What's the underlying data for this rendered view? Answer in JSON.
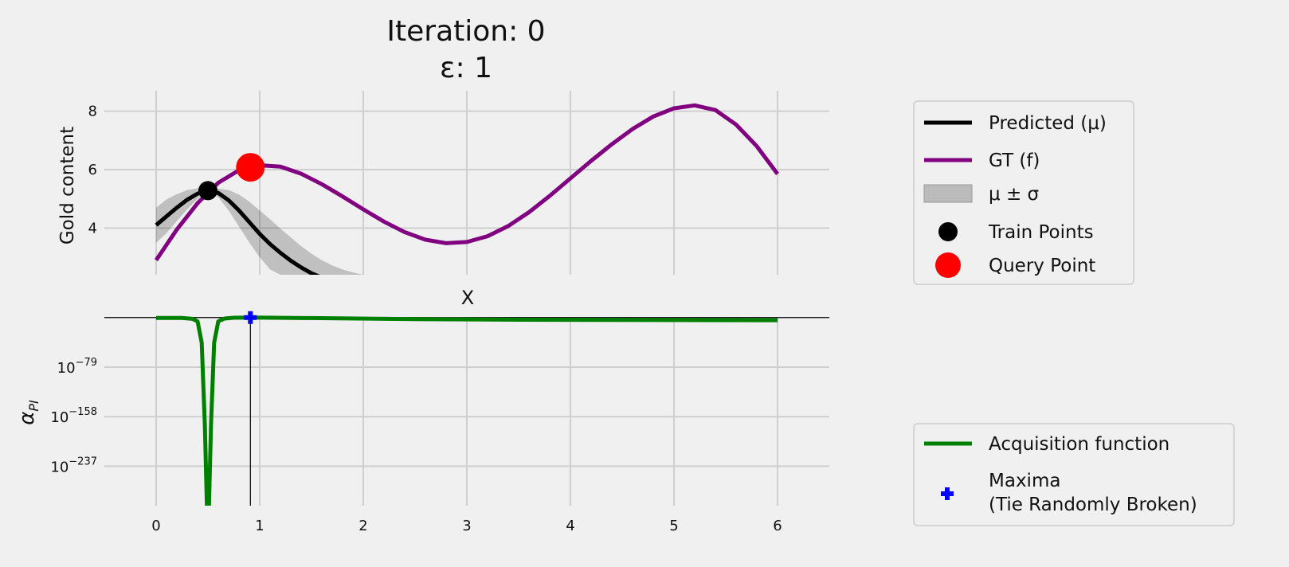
{
  "chart_data": [
    {
      "type": "line",
      "panel": "top",
      "title_line1": "Iteration: 0",
      "title_line2": "ε: 1",
      "xlabel": "X",
      "ylabel": "Gold content",
      "xlim": [
        -0.5,
        6.5
      ],
      "ylim": [
        2.4,
        8.7
      ],
      "xticks": [
        0,
        1,
        2,
        3,
        4,
        5,
        6
      ],
      "xtick_labels": [
        "0",
        "1",
        "2",
        "3",
        "4",
        "5",
        "6"
      ],
      "yticks": [
        4,
        6,
        8
      ],
      "ytick_labels": [
        "4",
        "6",
        "8"
      ],
      "grid": true,
      "legend_position": "right, outside",
      "series": [
        {
          "name": "GT (f)",
          "color": "#800080",
          "x": [
            0,
            0.2,
            0.4,
            0.6,
            0.8,
            1.0,
            1.2,
            1.4,
            1.6,
            1.8,
            2.0,
            2.2,
            2.4,
            2.6,
            2.8,
            3.0,
            3.2,
            3.4,
            3.6,
            3.8,
            4.0,
            4.2,
            4.4,
            4.6,
            4.8,
            5.0,
            5.2,
            5.4,
            5.6,
            5.8,
            6.0
          ],
          "y": [
            2.9,
            3.95,
            4.85,
            5.55,
            5.98,
            6.15,
            6.1,
            5.86,
            5.5,
            5.08,
            4.64,
            4.22,
            3.86,
            3.6,
            3.48,
            3.52,
            3.72,
            4.07,
            4.54,
            5.1,
            5.7,
            6.3,
            6.87,
            7.39,
            7.82,
            8.1,
            8.2,
            8.04,
            7.54,
            6.8,
            5.85
          ]
        },
        {
          "name": "Predicted (μ)",
          "color": "#000000",
          "x": [
            0,
            0.1,
            0.2,
            0.3,
            0.4,
            0.5,
            0.6,
            0.7,
            0.8,
            0.9,
            1.0,
            1.1,
            1.2,
            1.3,
            1.4,
            1.5,
            1.6
          ],
          "y": [
            4.1,
            4.4,
            4.7,
            4.97,
            5.18,
            5.28,
            5.2,
            4.95,
            4.6,
            4.2,
            3.8,
            3.45,
            3.15,
            2.88,
            2.65,
            2.45,
            2.3
          ]
        }
      ],
      "band": {
        "name": "μ ± σ",
        "color": "#000000",
        "x": [
          0,
          0.1,
          0.2,
          0.3,
          0.4,
          0.5,
          0.6,
          0.7,
          0.8,
          0.9,
          1.0,
          1.1,
          1.2,
          1.3,
          1.4,
          1.5,
          1.6,
          1.7,
          1.8,
          1.9,
          2.0
        ],
        "upper": [
          4.7,
          4.98,
          5.16,
          5.3,
          5.36,
          5.3,
          5.35,
          5.3,
          5.15,
          4.9,
          4.6,
          4.3,
          3.98,
          3.68,
          3.38,
          3.12,
          2.9,
          2.72,
          2.58,
          2.48,
          2.4
        ],
        "lower": [
          3.5,
          3.82,
          4.24,
          4.64,
          5.0,
          5.26,
          5.05,
          4.6,
          4.05,
          3.5,
          3.0,
          2.58,
          2.4,
          2.4,
          2.4,
          2.4,
          2.4,
          2.4,
          2.4,
          2.4,
          2.4
        ]
      },
      "train_points": {
        "name": "Train Points",
        "color": "#000000",
        "x": [
          0.5
        ],
        "y": [
          5.28
        ]
      },
      "query_point": {
        "name": "Query Point",
        "color": "#ff0000",
        "x": [
          0.91
        ],
        "y": [
          6.08
        ]
      }
    },
    {
      "type": "line",
      "panel": "bottom",
      "ylabel": "α_PI",
      "ylabel_main": "α",
      "ylabel_sub": "PI",
      "yscale": "log",
      "ylim_exp": [
        -300,
        1
      ],
      "yticks_exp": [
        -79,
        -158,
        -237
      ],
      "ytick_base": "10",
      "ytick_exponents": [
        "−79",
        "−158",
        "−237"
      ],
      "xlim": [
        -0.5,
        6.5
      ],
      "xticks": [
        0,
        1,
        2,
        3,
        4,
        5,
        6
      ],
      "xtick_labels": [
        "0",
        "1",
        "2",
        "3",
        "4",
        "5",
        "6"
      ],
      "grid": true,
      "legend_position": "right, outside, bottom",
      "series": [
        {
          "name": "Acquisition function",
          "color": "#008000",
          "x_exp_pairs": [
            [
              0,
              -0.5
            ],
            [
              0.25,
              -0.7
            ],
            [
              0.35,
              -2
            ],
            [
              0.4,
              -6
            ],
            [
              0.44,
              -40
            ],
            [
              0.47,
              -170
            ],
            [
              0.49,
              -300
            ],
            [
              0.51,
              -300
            ],
            [
              0.53,
              -170
            ],
            [
              0.56,
              -40
            ],
            [
              0.6,
              -6
            ],
            [
              0.66,
              -1.5
            ],
            [
              0.75,
              -0.3
            ],
            [
              0.91,
              0
            ],
            [
              1.5,
              -0.8
            ],
            [
              2.5,
              -2.5
            ],
            [
              3.5,
              -3.5
            ],
            [
              5,
              -4
            ],
            [
              6,
              -4.2
            ]
          ]
        }
      ],
      "maxima": {
        "name": "Maxima\n(Tie Randomly Broken)",
        "name_line1": "Maxima",
        "name_line2": "(Tie Randomly Broken)",
        "color": "#0000ff",
        "x": [
          0.91
        ],
        "y_exp": [
          0
        ]
      },
      "reference_line_exp": 0
    }
  ]
}
